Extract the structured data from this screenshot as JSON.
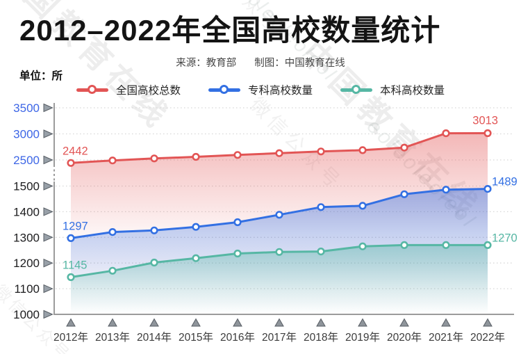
{
  "watermark": {
    "brand": "中国教育在线",
    "wechat": "微信公众号",
    "latin": "eoleoleoleol"
  },
  "chart_data": {
    "type": "line",
    "title": "2012–2022年全国高校数量统计",
    "source": "来源：教育部",
    "credit": "制图：中国教育在线",
    "unit": "单位：所",
    "xlabel": "",
    "ylabel": "所",
    "grid": "dotted-horizontal",
    "legend_position": "top",
    "broken_y_axis": true,
    "endpoint_value_labels": true,
    "categories": [
      "2012年",
      "2013年",
      "2014年",
      "2015年",
      "2016年",
      "2017年",
      "2018年",
      "2019年",
      "2020年",
      "2021年",
      "2022年"
    ],
    "series": [
      {
        "key": "total",
        "name": "全国高校总数",
        "color": "#e25555",
        "axis_section": "upper",
        "values": [
          2442,
          2491,
          2529,
          2560,
          2596,
          2631,
          2663,
          2688,
          2738,
          3012,
          3013
        ],
        "first_label": "2442",
        "last_label": "3013"
      },
      {
        "key": "vocational",
        "name": "专科高校数量",
        "color": "#3370e3",
        "axis_section": "lower",
        "values": [
          1297,
          1321,
          1327,
          1341,
          1359,
          1388,
          1418,
          1423,
          1468,
          1486,
          1489
        ],
        "first_label": "1297",
        "last_label": "1489"
      },
      {
        "key": "undergraduate",
        "name": "本科高校数量",
        "color": "#56b7a4",
        "axis_section": "lower",
        "values": [
          1145,
          1170,
          1202,
          1219,
          1237,
          1243,
          1245,
          1265,
          1270,
          1270,
          1270
        ],
        "first_label": "1145",
        "last_label": "1270"
      }
    ],
    "y_axis": {
      "upper": {
        "ticks": [
          3500,
          3000,
          2500
        ],
        "range": [
          2500,
          3500
        ],
        "label_color": "#3d66e6"
      },
      "lower": {
        "ticks": [
          1500,
          1400,
          1300,
          1200,
          1100,
          1000
        ],
        "range": [
          1000,
          1500
        ],
        "label_color": "#1c1c1e"
      }
    }
  }
}
